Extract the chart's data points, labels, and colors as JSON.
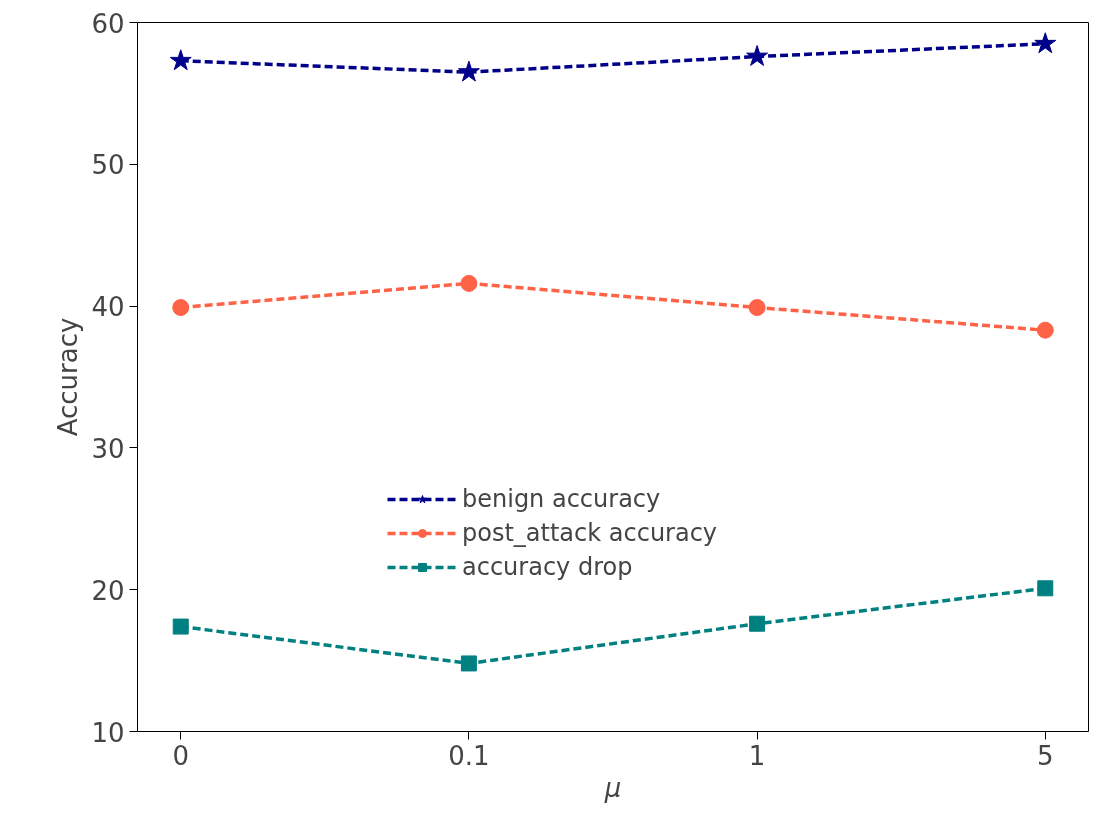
{
  "chart_data": {
    "type": "line",
    "xlabel": "μ",
    "ylabel": "Accuracy",
    "categories": [
      "0",
      "0.1",
      "1",
      "5"
    ],
    "ylim": [
      10,
      60
    ],
    "yticks": [
      10,
      20,
      30,
      40,
      50,
      60
    ],
    "grid": false,
    "legend": "center",
    "line_style": "dashed",
    "series": [
      {
        "name": "benign accuracy",
        "color": "#00008b",
        "marker": "star",
        "values": [
          57.3,
          56.5,
          57.6,
          58.5
        ]
      },
      {
        "name": "post_attack accuracy",
        "color": "#ff6347",
        "marker": "circle",
        "values": [
          39.9,
          41.6,
          39.9,
          38.3
        ]
      },
      {
        "name": "accuracy drop",
        "color": "#008080",
        "marker": "square",
        "values": [
          17.4,
          14.8,
          17.6,
          20.1
        ]
      }
    ]
  }
}
